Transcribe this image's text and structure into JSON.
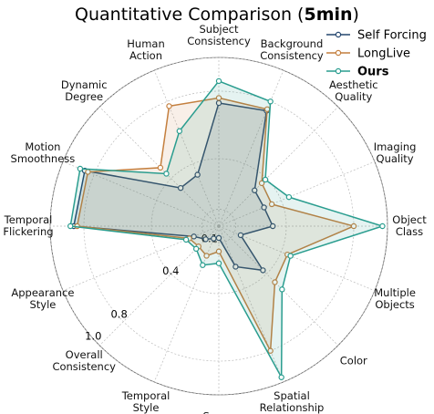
{
  "chart_data": {
    "type": "radar",
    "title_parts": [
      "Quantitative Comparison (",
      "5min",
      ")"
    ],
    "categories": [
      "Subject Consistency",
      "Background Consistency",
      "Aesthetic Quality",
      "Imaging Quality",
      "Object Class",
      "Multiple Objects",
      "Color",
      "Spatial Relationship",
      "Scene",
      "Temporal Style",
      "Overall Consistency",
      "Appearance Style",
      "Temporal Flickering",
      "Motion Smoothness",
      "Dynamic Degree",
      "Human Action"
    ],
    "series": [
      {
        "name": "Self Forcing",
        "color": "#24466f",
        "values": [
          0.73,
          0.74,
          0.3,
          0.29,
          0.32,
          0.14,
          0.37,
          0.26,
          0.07,
          0.08,
          0.11,
          0.16,
          0.86,
          0.86,
          0.32,
          0.33
        ]
      },
      {
        "name": "LongLive",
        "color": "#c47f3e",
        "values": [
          0.76,
          0.75,
          0.36,
          0.34,
          0.8,
          0.44,
          0.47,
          0.8,
          0.15,
          0.19,
          0.17,
          0.19,
          0.84,
          0.84,
          0.49,
          0.77
        ]
      },
      {
        "name": "Ours",
        "color": "#2a9d8f",
        "values": [
          0.86,
          0.8,
          0.39,
          0.45,
          0.97,
          0.46,
          0.53,
          0.97,
          0.22,
          0.25,
          0.19,
          0.21,
          0.88,
          0.89,
          0.44,
          0.61
        ]
      }
    ],
    "rlim": [
      0,
      1.0
    ],
    "rticks": [
      0.1,
      0.4,
      0.8,
      {
        "value": 1.0,
        "label": "1.0"
      }
    ],
    "grid": true,
    "legend": "upper right"
  }
}
